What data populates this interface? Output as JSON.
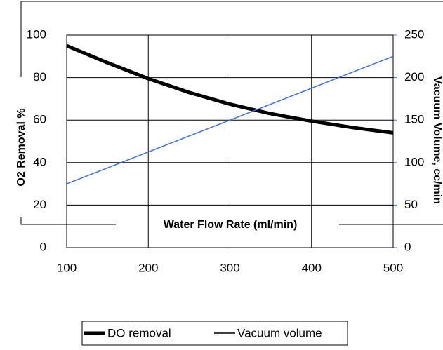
{
  "chart_data": {
    "type": "line",
    "x_label": "Water Flow Rate (ml/min)",
    "y_label": "O2 Removal %",
    "y2_label": "Vacuum Volume, cc/min",
    "xlim": [
      100,
      500
    ],
    "xticks": [
      100,
      200,
      300,
      400,
      500
    ],
    "ylim": [
      0,
      100
    ],
    "yticks": [
      0,
      20,
      40,
      60,
      80,
      100
    ],
    "y2lim": [
      0,
      250
    ],
    "y2ticks": [
      0,
      50,
      100,
      150,
      200,
      250
    ],
    "y2_color": "#3f6fe8",
    "grid": true,
    "series": [
      {
        "name": "DO removal",
        "color": "#000000",
        "width": 5,
        "x": [
          100,
          150,
          200,
          250,
          300,
          350,
          400,
          450,
          500
        ],
        "values": [
          95,
          87,
          79.5,
          73,
          67.5,
          63,
          59.5,
          56.5,
          54
        ]
      },
      {
        "name": "Vacuum volume",
        "color": "#3f6fe8",
        "width": 1.5,
        "axis": "y2",
        "x": [
          100,
          500
        ],
        "values": [
          75,
          225
        ]
      }
    ]
  }
}
